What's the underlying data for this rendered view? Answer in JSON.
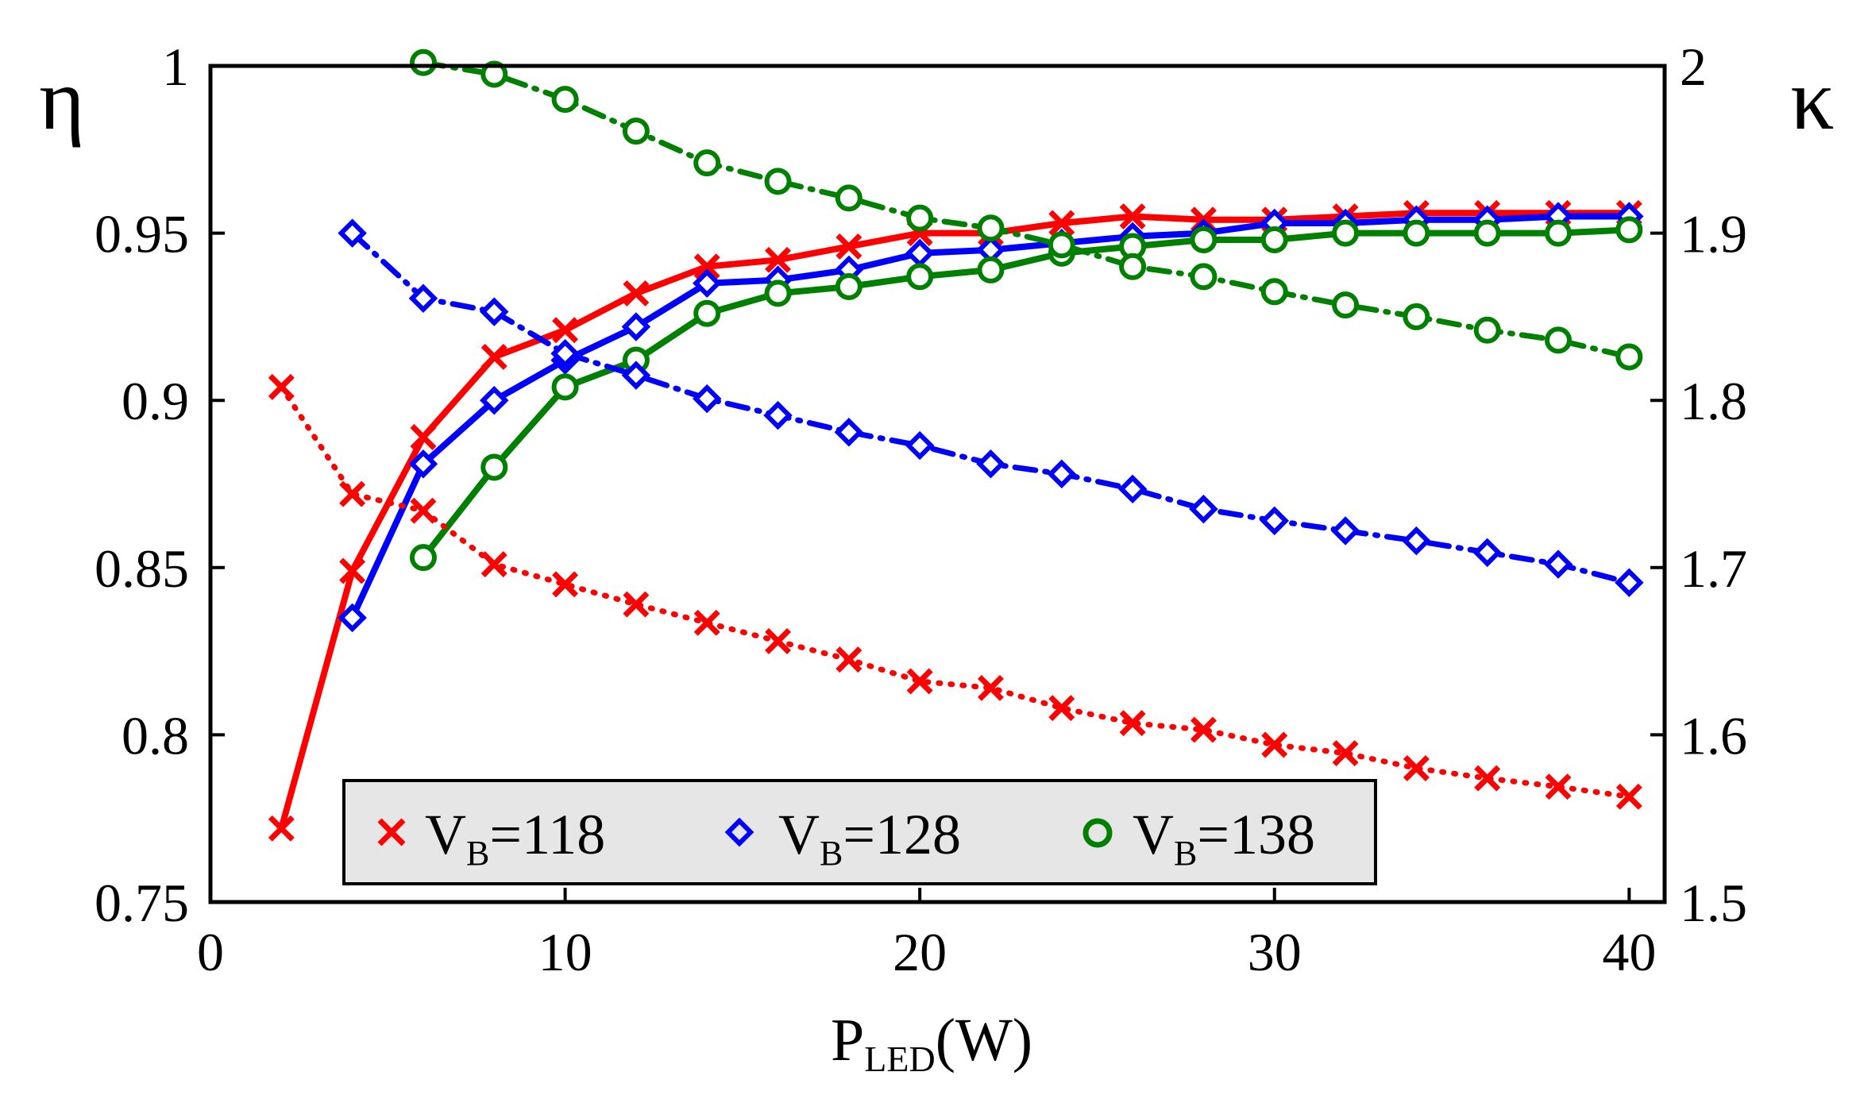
{
  "chart_data": {
    "type": "line",
    "x_label": "P",
    "x_label_sub": "LED",
    "x_label_unit": "(W)",
    "y_left_label": "η",
    "y_right_label": "κ",
    "xlim": [
      0,
      41
    ],
    "ylim_left": [
      0.75,
      1.0
    ],
    "ylim_right": [
      1.5,
      2.0
    ],
    "x_ticks": [
      0,
      10,
      20,
      30,
      40
    ],
    "x_tick_labels": [
      "0",
      "10",
      "20",
      "30",
      "40"
    ],
    "y_left_ticks": [
      0.75,
      0.8,
      0.85,
      0.9,
      0.95,
      1.0
    ],
    "y_left_tick_labels": [
      "0.75",
      "0.8",
      "0.85",
      "0.9",
      "0.95",
      "1"
    ],
    "y_right_ticks": [
      1.5,
      1.6,
      1.7,
      1.8,
      1.9,
      2.0
    ],
    "y_right_tick_labels": [
      "1.5",
      "1.6",
      "1.7",
      "1.8",
      "1.9",
      "2"
    ],
    "grid": false,
    "legend": {
      "placement": "bottom-center",
      "entries": [
        {
          "base": "V",
          "sub": "B",
          "rest": "=118"
        },
        {
          "base": "V",
          "sub": "B",
          "rest": "=128"
        },
        {
          "base": "V",
          "sub": "B",
          "rest": "=138"
        }
      ]
    },
    "series": [
      {
        "name": "V_B=118 η",
        "axis": "left",
        "style": "solid",
        "color": "#ff0000",
        "marker": "x",
        "x": [
          2,
          4,
          6,
          8,
          10,
          12,
          14,
          16,
          18,
          20,
          22,
          24,
          26,
          28,
          30,
          32,
          34,
          36,
          38,
          40
        ],
        "y": [
          0.772,
          0.849,
          0.889,
          0.913,
          0.921,
          0.932,
          0.94,
          0.942,
          0.946,
          0.95,
          0.95,
          0.953,
          0.955,
          0.954,
          0.954,
          0.955,
          0.956,
          0.956,
          0.956,
          0.956
        ]
      },
      {
        "name": "V_B=128 η",
        "axis": "left",
        "style": "solid",
        "color": "#0000ff",
        "marker": "diamond",
        "x": [
          4,
          6,
          8,
          10,
          12,
          14,
          16,
          18,
          20,
          22,
          24,
          26,
          28,
          30,
          32,
          34,
          36,
          38,
          40
        ],
        "y": [
          0.835,
          0.881,
          0.9,
          0.912,
          0.922,
          0.935,
          0.936,
          0.939,
          0.944,
          0.945,
          0.947,
          0.949,
          0.95,
          0.953,
          0.953,
          0.954,
          0.954,
          0.955,
          0.955
        ]
      },
      {
        "name": "V_B=138 η",
        "axis": "left",
        "style": "solid",
        "color": "#008000",
        "marker": "circle",
        "x": [
          6,
          8,
          10,
          12,
          14,
          16,
          18,
          20,
          22,
          24,
          26,
          28,
          30,
          32,
          34,
          36,
          38,
          40
        ],
        "y": [
          0.853,
          0.88,
          0.904,
          0.912,
          0.926,
          0.932,
          0.934,
          0.937,
          0.939,
          0.944,
          0.946,
          0.948,
          0.948,
          0.95,
          0.95,
          0.95,
          0.95,
          0.951
        ]
      },
      {
        "name": "V_B=118 κ",
        "axis": "right",
        "style": "dotted",
        "color": "#ff0000",
        "marker": "x",
        "x": [
          2,
          4,
          6,
          8,
          10,
          12,
          14,
          16,
          18,
          20,
          22,
          24,
          26,
          28,
          30,
          32,
          34,
          36,
          38,
          40
        ],
        "y": [
          1.808,
          1.744,
          1.734,
          1.702,
          1.69,
          1.678,
          1.667,
          1.656,
          1.645,
          1.632,
          1.628,
          1.616,
          1.607,
          1.603,
          1.594,
          1.589,
          1.58,
          1.574,
          1.569,
          1.563
        ]
      },
      {
        "name": "V_B=128 κ",
        "axis": "right",
        "style": "dashdot",
        "color": "#0000ff",
        "marker": "diamond",
        "x": [
          4,
          6,
          8,
          10,
          12,
          14,
          16,
          18,
          20,
          22,
          24,
          26,
          28,
          30,
          32,
          34,
          36,
          38,
          40
        ],
        "y": [
          1.9,
          1.861,
          1.853,
          1.828,
          1.815,
          1.801,
          1.791,
          1.781,
          1.773,
          1.762,
          1.756,
          1.747,
          1.735,
          1.728,
          1.722,
          1.716,
          1.709,
          1.702,
          1.691
        ]
      },
      {
        "name": "V_B=138 κ",
        "axis": "right",
        "style": "dashdot",
        "color": "#008000",
        "marker": "circle",
        "x": [
          6,
          8,
          10,
          12,
          14,
          16,
          18,
          20,
          22,
          24,
          26,
          28,
          30,
          32,
          34,
          36,
          38,
          40
        ],
        "y": [
          2.002,
          1.995,
          1.98,
          1.961,
          1.942,
          1.931,
          1.921,
          1.909,
          1.903,
          1.893,
          1.88,
          1.874,
          1.865,
          1.857,
          1.85,
          1.842,
          1.836,
          1.826
        ]
      }
    ]
  }
}
